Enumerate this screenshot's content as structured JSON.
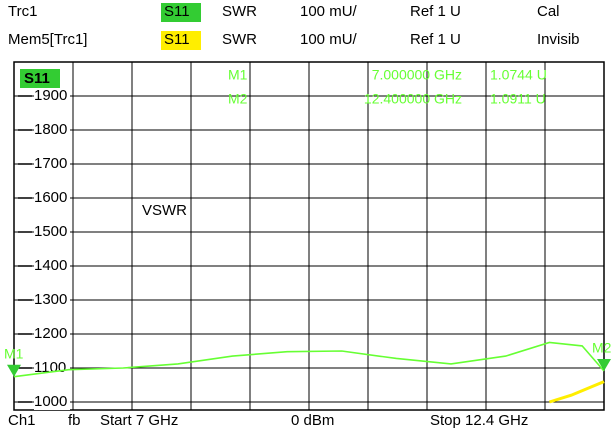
{
  "header": [
    [
      "Trc1",
      "S11",
      "SWR",
      "100 mU/",
      "Ref 1 U",
      "Cal"
    ],
    [
      "Mem5[Trc1]",
      "S11",
      "SWR",
      "100 mU/",
      "Ref 1 U",
      "Invisib"
    ]
  ],
  "footer": [
    "Ch1",
    "fb",
    "Start 7 GHz",
    "0 dBm",
    "Stop 12.4 GHz"
  ],
  "chart_data": {
    "type": "line",
    "trace_label": "S11",
    "annotation": "VSWR",
    "xlim": [
      7,
      12.4
    ],
    "xticks": [
      7,
      7.54,
      8.08,
      8.62,
      9.16,
      9.7,
      10.24,
      10.78,
      11.32,
      11.86,
      12.4
    ],
    "ylim": [
      1000,
      2000
    ],
    "yticks": [
      1000,
      1100,
      1200,
      1300,
      1400,
      1500,
      1600,
      1700,
      1800,
      1900
    ],
    "grid": true,
    "series": [
      {
        "name": "Trc1",
        "color": "#66ff33",
        "x": [
          7,
          7.5,
          8.0,
          8.5,
          9.0,
          9.5,
          10.0,
          10.5,
          11.0,
          11.5,
          11.9,
          12.2,
          12.4
        ],
        "values": [
          1074.4,
          1095,
          1100,
          1112,
          1135,
          1148,
          1150,
          1128,
          1112,
          1135,
          1175,
          1165,
          1091.1
        ]
      },
      {
        "name": "Mem5[Trc1]",
        "color": "#ffee00",
        "x": [
          11.9,
          12.1,
          12.4
        ],
        "values": [
          1000,
          1020,
          1060
        ]
      }
    ],
    "markers": [
      {
        "name": "M1",
        "x": 7,
        "x_label": "7.000000 GHz",
        "value": 1074.4,
        "value_label": "1.0744 U"
      },
      {
        "name": "M2",
        "x": 12.4,
        "x_label": "12.400000 GHz",
        "value": 1091.1,
        "value_label": "1.0911 U"
      }
    ]
  }
}
